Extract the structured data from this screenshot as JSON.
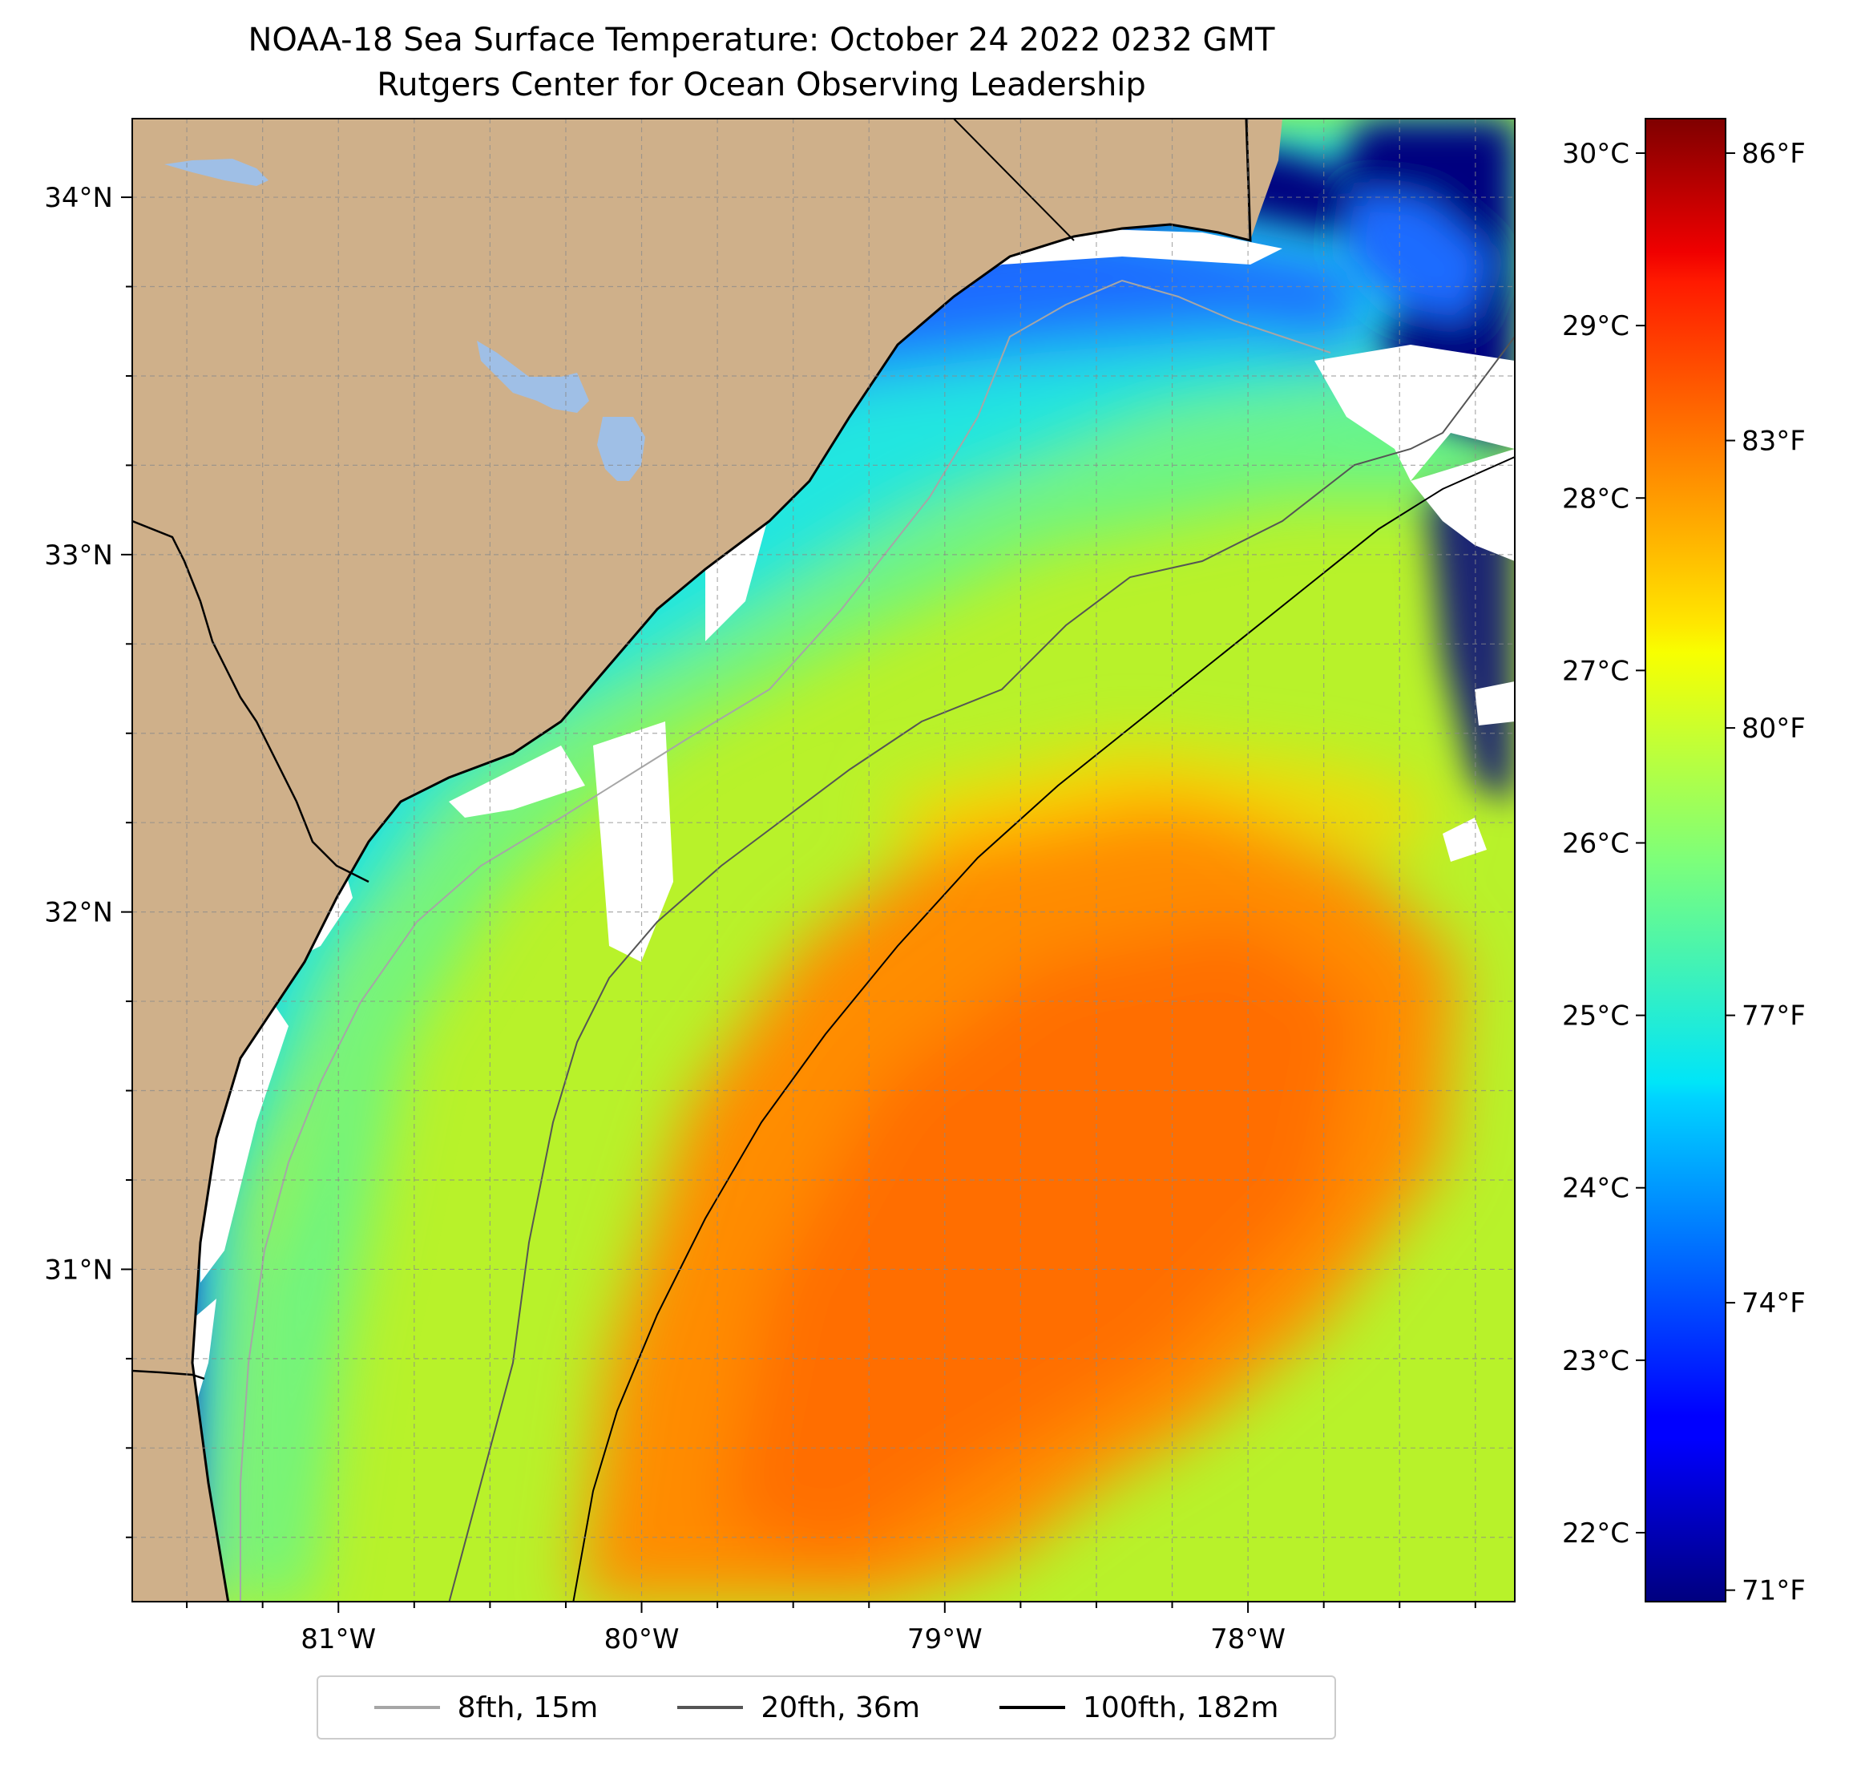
{
  "title": {
    "line1": "NOAA-18 Sea Surface Temperature: October 24 2022 0232 GMT",
    "line2": "Rutgers Center for Ocean Observing Leadership"
  },
  "colors": {
    "land": "#cfb08a",
    "lake": "#9fbfe6",
    "cloud": "#ffffff",
    "grid": "#9a9a9a",
    "cold": "#00007f",
    "warm_core": "#ff8800"
  },
  "chart_data": {
    "type": "heatmap",
    "title": "NOAA-18 Sea Surface Temperature: October 24 2022 0232 GMT",
    "lon_range": [
      -81.68,
      -77.12
    ],
    "lat_range": [
      30.07,
      34.22
    ],
    "lon_ticks": [
      {
        "value": -81,
        "label": "81°W"
      },
      {
        "value": -80,
        "label": "80°W"
      },
      {
        "value": -79,
        "label": "79°W"
      },
      {
        "value": -78,
        "label": "78°W"
      }
    ],
    "lat_ticks": [
      {
        "value": 31,
        "label": "31°N"
      },
      {
        "value": 32,
        "label": "32°N"
      },
      {
        "value": 33,
        "label": "33°N"
      },
      {
        "value": 34,
        "label": "34°N"
      }
    ],
    "colorbar": {
      "celsius_range": [
        21.6,
        30.2
      ],
      "celsius_ticks": [
        {
          "value": 22,
          "label": "22°C"
        },
        {
          "value": 23,
          "label": "23°C"
        },
        {
          "value": 24,
          "label": "24°C"
        },
        {
          "value": 25,
          "label": "25°C"
        },
        {
          "value": 26,
          "label": "26°C"
        },
        {
          "value": 27,
          "label": "27°C"
        },
        {
          "value": 28,
          "label": "28°C"
        },
        {
          "value": 29,
          "label": "29°C"
        },
        {
          "value": 30,
          "label": "30°C"
        }
      ],
      "fahrenheit_ticks": [
        {
          "value": 71,
          "label": "71°F"
        },
        {
          "value": 74,
          "label": "74°F"
        },
        {
          "value": 77,
          "label": "77°F"
        },
        {
          "value": 80,
          "label": "80°F"
        },
        {
          "value": 83,
          "label": "83°F"
        },
        {
          "value": 86,
          "label": "86°F"
        }
      ],
      "colormap": "jet"
    },
    "legend": [
      {
        "label": "8fth, 15m",
        "color": "#a6a6a6"
      },
      {
        "label": "20fth, 36m",
        "color": "#555555"
      },
      {
        "label": "100fth, 182m",
        "color": "#000000"
      }
    ]
  }
}
